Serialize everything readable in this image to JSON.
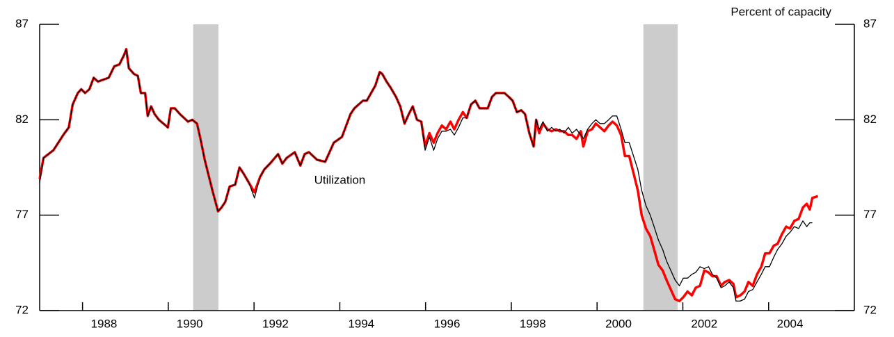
{
  "chart_data": {
    "type": "line",
    "title": "Percent of capacity",
    "annotation": {
      "text": "Utilization",
      "x": 1994.0,
      "y": 78.8
    },
    "xlim": [
      1987.0,
      2006.0
    ],
    "xticks": [
      1988,
      1990,
      1992,
      1994,
      1996,
      1998,
      2000,
      2002,
      2004
    ],
    "ylim": [
      72,
      87
    ],
    "yticks": [
      72,
      77,
      82,
      87
    ],
    "y2lim": [
      72,
      87
    ],
    "y2ticks": [
      72,
      77,
      82,
      87
    ],
    "shaded_periods": [
      [
        1990.58,
        1991.17
      ],
      [
        2001.08,
        2001.88
      ]
    ],
    "shade_color": "#cccccc",
    "x": [
      1987.0,
      1987.09,
      1987.32,
      1987.55,
      1987.68,
      1987.77,
      1987.89,
      1987.97,
      1988.06,
      1988.16,
      1988.26,
      1988.36,
      1988.61,
      1988.74,
      1988.86,
      1988.97,
      1989.02,
      1989.08,
      1989.2,
      1989.29,
      1989.36,
      1989.46,
      1989.52,
      1989.6,
      1989.68,
      1989.78,
      1989.99,
      1990.06,
      1990.15,
      1990.27,
      1990.46,
      1990.56,
      1990.67,
      1990.75,
      1990.85,
      1990.95,
      1991.04,
      1991.16,
      1991.24,
      1991.33,
      1991.43,
      1991.56,
      1991.66,
      1991.75,
      1991.88,
      1992.01,
      1992.14,
      1992.24,
      1992.37,
      1992.56,
      1992.66,
      1992.76,
      1992.95,
      1993.08,
      1993.18,
      1993.28,
      1993.47,
      1993.66,
      1993.76,
      1993.86,
      1994.05,
      1994.15,
      1994.25,
      1994.34,
      1994.54,
      1994.63,
      1994.73,
      1994.83,
      1994.93,
      1994.99,
      1995.09,
      1995.18,
      1995.31,
      1995.41,
      1995.51,
      1995.61,
      1995.7,
      1995.8,
      1995.9,
      1995.99,
      1996.09,
      1996.19,
      1996.28,
      1996.38,
      1996.48,
      1996.58,
      1996.67,
      1996.77,
      1996.87,
      1996.96,
      1997.06,
      1997.16,
      1997.26,
      1997.45,
      1997.55,
      1997.64,
      1997.84,
      1997.94,
      1998.03,
      1998.13,
      1998.23,
      1998.32,
      1998.42,
      1998.52,
      1998.58,
      1998.65,
      1998.74,
      1998.84,
      1998.94,
      1999.04,
      1999.13,
      1999.23,
      1999.33,
      1999.42,
      1999.52,
      1999.62,
      1999.68,
      1999.78,
      1999.88,
      1999.97,
      2000.07,
      2000.17,
      2000.27,
      2000.36,
      2000.46,
      2000.56,
      2000.65,
      2000.75,
      2000.85,
      2000.95,
      2001.04,
      2001.14,
      2001.24,
      2001.33,
      2001.43,
      2001.53,
      2001.62,
      2001.72,
      2001.82,
      2001.92,
      2002.01,
      2002.11,
      2002.21,
      2002.3,
      2002.4,
      2002.5,
      2002.6,
      2002.69,
      2002.79,
      2002.89,
      2002.98,
      2003.08,
      2003.18,
      2003.24,
      2003.34,
      2003.44,
      2003.53,
      2003.63,
      2003.73,
      2003.83,
      2003.92,
      2004.02,
      2004.12,
      2004.21,
      2004.31,
      2004.41,
      2004.5,
      2004.6,
      2004.7,
      2004.8,
      2004.89,
      2004.96,
      2005.02,
      2005.15
    ],
    "series": [
      {
        "color": "#000000",
        "values": [
          78.7,
          80.0,
          80.4,
          81.2,
          81.6,
          82.8,
          83.4,
          83.6,
          83.4,
          83.6,
          84.2,
          84.0,
          84.2,
          84.8,
          84.9,
          85.4,
          85.7,
          84.7,
          84.4,
          84.3,
          83.4,
          83.4,
          82.2,
          82.7,
          82.3,
          82.0,
          81.6,
          82.6,
          82.6,
          82.3,
          81.9,
          82.0,
          81.8,
          81.0,
          79.9,
          79.0,
          78.2,
          77.2,
          77.4,
          77.7,
          78.5,
          78.6,
          79.5,
          79.2,
          78.7,
          77.9,
          79.0,
          79.4,
          79.7,
          80.2,
          79.7,
          80.0,
          80.3,
          79.6,
          80.2,
          80.3,
          79.9,
          79.8,
          80.3,
          80.8,
          81.1,
          81.7,
          82.3,
          82.6,
          83.0,
          83.0,
          83.4,
          83.8,
          84.5,
          84.4,
          84.0,
          83.7,
          83.2,
          82.7,
          81.8,
          82.3,
          82.7,
          82.0,
          81.9,
          80.4,
          81.1,
          80.4,
          81.0,
          81.4,
          81.4,
          81.5,
          81.2,
          81.6,
          82.1,
          82.1,
          82.8,
          83.0,
          82.6,
          82.6,
          83.2,
          83.4,
          83.4,
          83.2,
          83.0,
          82.4,
          82.5,
          82.3,
          81.3,
          80.6,
          82.0,
          81.5,
          81.9,
          81.4,
          81.6,
          81.4,
          81.5,
          81.3,
          81.6,
          81.3,
          81.5,
          81.2,
          81.0,
          81.5,
          81.8,
          82.0,
          81.8,
          81.8,
          82.0,
          82.2,
          82.2,
          81.5,
          80.8,
          80.8,
          80.1,
          79.4,
          78.3,
          77.5,
          77.0,
          76.4,
          75.7,
          75.2,
          74.6,
          74.1,
          73.6,
          73.3,
          73.7,
          73.7,
          73.9,
          74.0,
          74.3,
          74.2,
          74.3,
          73.9,
          73.7,
          73.2,
          73.3,
          73.5,
          73.2,
          72.5,
          72.5,
          72.6,
          73.0,
          73.1,
          73.5,
          73.9,
          74.3,
          74.3,
          74.8,
          75.2,
          75.5,
          75.9,
          76.1,
          76.4,
          76.3,
          76.7,
          76.4,
          76.6,
          76.6,
          null
        ]
      },
      {
        "color": "#ff0000",
        "values": [
          78.9,
          80.0,
          80.4,
          81.2,
          81.6,
          82.8,
          83.4,
          83.6,
          83.4,
          83.6,
          84.2,
          84.0,
          84.2,
          84.8,
          84.9,
          85.4,
          85.7,
          84.7,
          84.4,
          84.3,
          83.4,
          83.4,
          82.2,
          82.7,
          82.3,
          82.0,
          81.6,
          82.6,
          82.6,
          82.3,
          81.9,
          82.0,
          81.8,
          81.0,
          79.9,
          79.0,
          78.2,
          77.2,
          77.4,
          77.7,
          78.5,
          78.6,
          79.5,
          79.2,
          78.7,
          78.2,
          79.0,
          79.4,
          79.7,
          80.2,
          79.7,
          80.0,
          80.3,
          79.6,
          80.2,
          80.3,
          79.9,
          79.8,
          80.3,
          80.8,
          81.1,
          81.7,
          82.3,
          82.6,
          83.0,
          83.0,
          83.4,
          83.8,
          84.5,
          84.4,
          84.0,
          83.7,
          83.2,
          82.7,
          81.8,
          82.3,
          82.7,
          82.0,
          81.9,
          80.6,
          81.3,
          80.8,
          81.3,
          81.7,
          81.5,
          81.9,
          81.5,
          82.0,
          82.4,
          82.1,
          82.8,
          83.0,
          82.6,
          82.6,
          83.2,
          83.4,
          83.4,
          83.2,
          83.0,
          82.4,
          82.5,
          82.3,
          81.3,
          80.6,
          82.0,
          81.3,
          81.8,
          81.5,
          81.4,
          81.5,
          81.4,
          81.4,
          81.2,
          81.2,
          81.0,
          81.4,
          80.6,
          81.4,
          81.5,
          81.8,
          81.6,
          81.4,
          81.7,
          81.9,
          81.7,
          81.2,
          80.1,
          80.1,
          79.2,
          78.3,
          77.0,
          76.3,
          75.9,
          75.2,
          74.4,
          74.1,
          73.6,
          73.1,
          72.6,
          72.5,
          72.7,
          73.0,
          72.8,
          73.2,
          73.3,
          74.1,
          74.0,
          73.8,
          73.8,
          73.3,
          73.5,
          73.6,
          73.4,
          72.7,
          72.8,
          73.0,
          73.5,
          73.3,
          73.9,
          74.3,
          75.0,
          75.0,
          75.4,
          75.5,
          76.0,
          76.4,
          76.3,
          76.7,
          76.8,
          77.4,
          77.6,
          77.3,
          77.9,
          78.0
        ]
      }
    ]
  }
}
